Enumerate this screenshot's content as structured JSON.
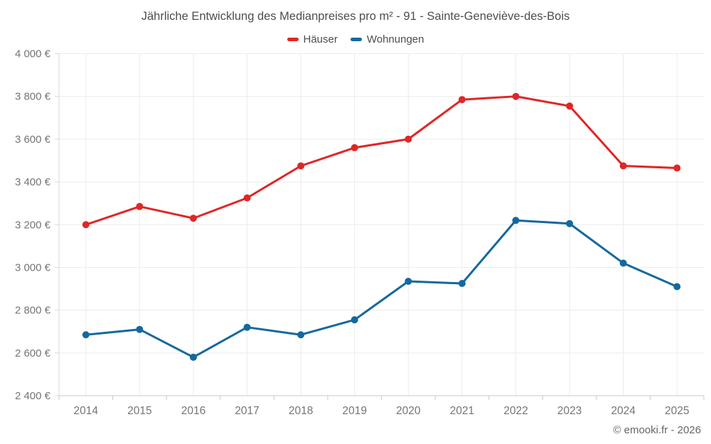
{
  "page": {
    "title": "Jährliche Entwicklung des Medianpreises pro m² - 91 - Sainte-Geneviève-des-Bois",
    "footer": "© emooki.fr - 2026"
  },
  "chart_data": {
    "type": "line",
    "title": "Jährliche Entwicklung des Medianpreises pro m² - 91 - Sainte-Geneviève-des-Bois",
    "categories": [
      "2014",
      "2015",
      "2016",
      "2017",
      "2018",
      "2019",
      "2020",
      "2021",
      "2022",
      "2023",
      "2024",
      "2025"
    ],
    "series": [
      {
        "name": "Häuser",
        "color": "#e02626",
        "values": [
          3200,
          3285,
          3230,
          3325,
          3475,
          3560,
          3600,
          3785,
          3800,
          3755,
          3475,
          3465
        ]
      },
      {
        "name": "Wohnungen",
        "color": "#15689e",
        "values": [
          2685,
          2710,
          2580,
          2720,
          2685,
          2755,
          2935,
          2925,
          3220,
          3205,
          3020,
          2910
        ]
      }
    ],
    "xlabel": "",
    "ylabel": "",
    "ylim": [
      2400,
      4000
    ],
    "y_ticks": [
      2400,
      2600,
      2800,
      3000,
      3200,
      3400,
      3600,
      3800,
      4000
    ],
    "y_tick_labels": [
      "2 400 €",
      "2 600 €",
      "2 800 €",
      "3 000 €",
      "3 200 €",
      "3 400 €",
      "3 600 €",
      "3 800 €",
      "4 000 €"
    ],
    "grid": true,
    "legend_position": "top"
  },
  "style": {
    "grid_color": "#ececec",
    "axis_line_color": "#d9d9d9",
    "bottom_axis_color": "#c9c9c9",
    "axis_text_color": "#757575",
    "marker_radius": 5,
    "line_width": 3
  }
}
